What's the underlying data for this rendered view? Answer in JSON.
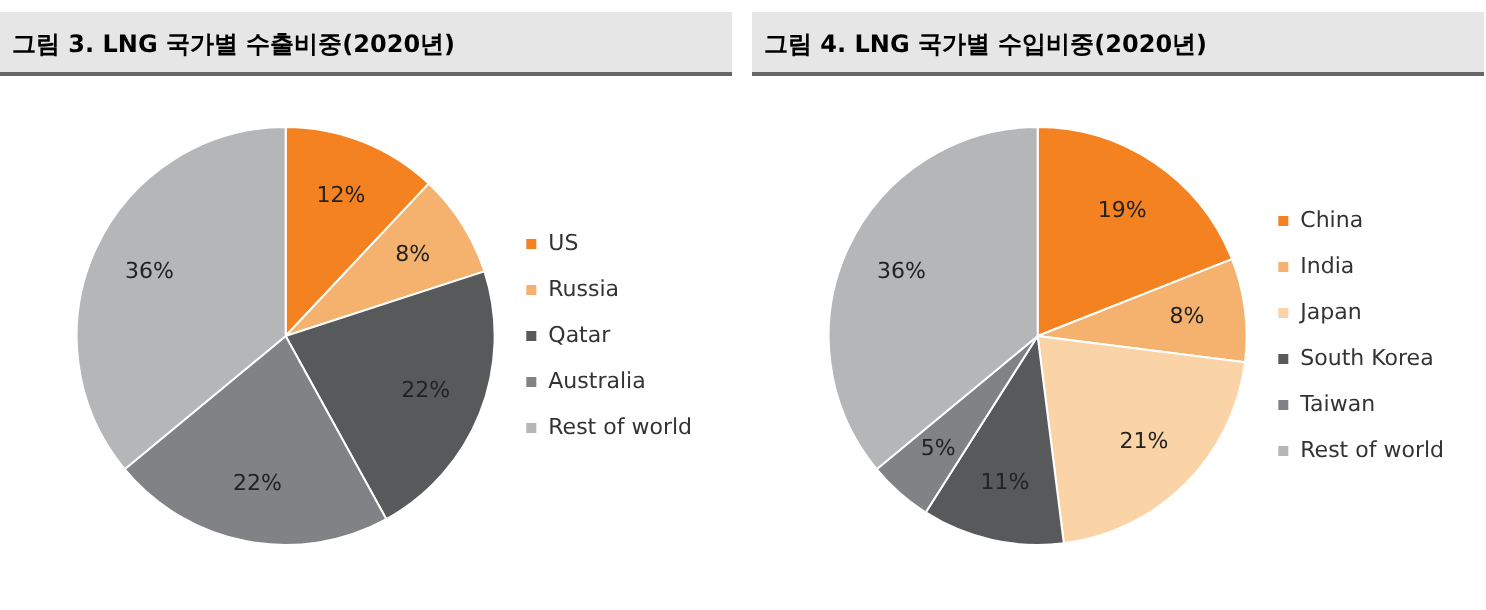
{
  "chart_data": [
    {
      "type": "pie",
      "title": "그림 3. LNG 국가별 수출비중(2020년)",
      "categories": [
        "US",
        "Russia",
        "Qatar",
        "Australia",
        "Rest of world"
      ],
      "values": [
        12,
        8,
        22,
        22,
        36
      ],
      "value_labels": [
        "12%",
        "8%",
        "22%",
        "22%",
        "36%"
      ],
      "colors": [
        "#f58220",
        "#f5b26e",
        "#58595b",
        "#808285",
        "#b5b6b8"
      ],
      "legend": "right"
    },
    {
      "type": "pie",
      "title": "그림 4. LNG 국가별 수입비중(2020년)",
      "categories": [
        "China",
        "India",
        "Japan",
        "South Korea",
        "Taiwan",
        "Rest of world"
      ],
      "values": [
        19,
        8,
        21,
        11,
        5,
        36
      ],
      "value_labels": [
        "19%",
        "8%",
        "21%",
        "11%",
        "5%",
        "36%"
      ],
      "colors": [
        "#f58220",
        "#f5b26e",
        "#fad4a6",
        "#58595b",
        "#808285",
        "#b5b6b8"
      ],
      "legend": "right"
    }
  ]
}
